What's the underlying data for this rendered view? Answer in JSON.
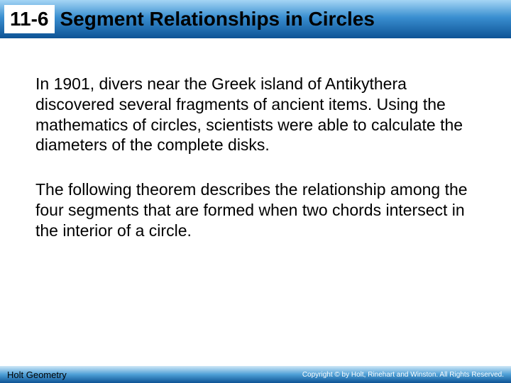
{
  "header": {
    "chapter": "11-6",
    "title": "Segment Relationships in Circles",
    "gradient_top": "#a5d5f5",
    "gradient_mid": "#3a8fd0",
    "gradient_bottom": "#0d5395",
    "chapter_bg": "#ffffff",
    "text_color": "#000000",
    "font_size": 28
  },
  "body": {
    "paragraphs": [
      "In 1901, divers near the Greek island of Antikythera discovered several fragments of ancient items. Using the mathematics of circles, scientists were able to calculate the diameters of the complete disks.",
      "The following theorem describes the relationship among the four segments that are formed when two chords intersect in the interior of a circle."
    ],
    "font_size": 23,
    "text_color": "#000000",
    "background": "#ffffff"
  },
  "footer": {
    "left": "Holt Geometry",
    "right": "Copyright © by Holt, Rinehart and Winston. All Rights Reserved.",
    "gradient_top": "#cfe8f7",
    "gradient_mid": "#4d9fd6",
    "gradient_bottom": "#0d5395",
    "left_color": "#000000",
    "right_color": "#ffffff",
    "left_font_size": 13,
    "right_font_size": 10
  }
}
